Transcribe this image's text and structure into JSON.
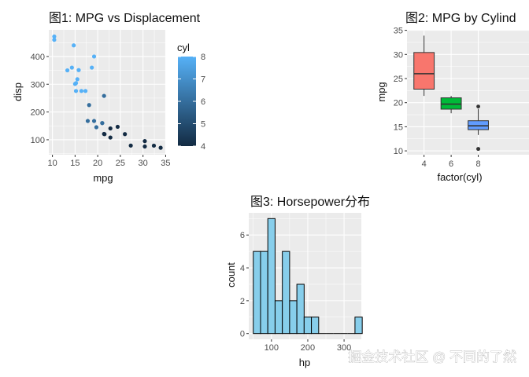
{
  "chart_data": [
    {
      "type": "scatter",
      "title": "图1: MPG vs Displacement",
      "xlabel": "mpg",
      "ylabel": "disp",
      "xlim": [
        9.2,
        35.1
      ],
      "ylim": [
        46,
        496
      ],
      "xticks": [
        10,
        15,
        20,
        25,
        30,
        35
      ],
      "yticks": [
        100,
        200,
        300,
        400
      ],
      "grid": true,
      "color_legend": {
        "title": "cyl",
        "range": [
          4,
          8
        ],
        "ticks": [
          4,
          5,
          6,
          7,
          8
        ],
        "low_color": "#132B43",
        "high_color": "#56B1F7",
        "placement": "right"
      },
      "points": [
        {
          "x": 21.0,
          "y": 160,
          "c": 6
        },
        {
          "x": 21.0,
          "y": 160,
          "c": 6
        },
        {
          "x": 22.8,
          "y": 108,
          "c": 4
        },
        {
          "x": 21.4,
          "y": 258,
          "c": 6
        },
        {
          "x": 18.7,
          "y": 360,
          "c": 8
        },
        {
          "x": 18.1,
          "y": 225,
          "c": 6
        },
        {
          "x": 14.3,
          "y": 360,
          "c": 8
        },
        {
          "x": 24.4,
          "y": 146.7,
          "c": 4
        },
        {
          "x": 22.8,
          "y": 140.8,
          "c": 4
        },
        {
          "x": 19.2,
          "y": 167.6,
          "c": 6
        },
        {
          "x": 17.8,
          "y": 167.6,
          "c": 6
        },
        {
          "x": 16.4,
          "y": 275.8,
          "c": 8
        },
        {
          "x": 17.3,
          "y": 275.8,
          "c": 8
        },
        {
          "x": 15.2,
          "y": 275.8,
          "c": 8
        },
        {
          "x": 10.4,
          "y": 472,
          "c": 8
        },
        {
          "x": 10.4,
          "y": 460,
          "c": 8
        },
        {
          "x": 14.7,
          "y": 440,
          "c": 8
        },
        {
          "x": 32.4,
          "y": 78.7,
          "c": 4
        },
        {
          "x": 30.4,
          "y": 75.7,
          "c": 4
        },
        {
          "x": 33.9,
          "y": 71.1,
          "c": 4
        },
        {
          "x": 21.5,
          "y": 120.1,
          "c": 4
        },
        {
          "x": 15.5,
          "y": 318,
          "c": 8
        },
        {
          "x": 15.2,
          "y": 304,
          "c": 8
        },
        {
          "x": 13.3,
          "y": 350,
          "c": 8
        },
        {
          "x": 19.2,
          "y": 400,
          "c": 8
        },
        {
          "x": 27.3,
          "y": 79,
          "c": 4
        },
        {
          "x": 26.0,
          "y": 120.3,
          "c": 4
        },
        {
          "x": 30.4,
          "y": 95.1,
          "c": 4
        },
        {
          "x": 15.8,
          "y": 351,
          "c": 8
        },
        {
          "x": 19.7,
          "y": 145,
          "c": 6
        },
        {
          "x": 15.0,
          "y": 301,
          "c": 8
        },
        {
          "x": 21.4,
          "y": 121,
          "c": 4
        }
      ]
    },
    {
      "type": "box",
      "title": "图2: MPG by Cylind",
      "xlabel": "factor(cyl)",
      "ylabel": "mpg",
      "ylim": [
        9.2,
        35.1
      ],
      "yticks": [
        10,
        15,
        20,
        25,
        30,
        35
      ],
      "grid": true,
      "boxes": [
        {
          "category": "4",
          "min": 21.4,
          "q1": 22.8,
          "median": 26.0,
          "q3": 30.4,
          "max": 33.9,
          "outliers": [],
          "color": "#F8766D"
        },
        {
          "category": "6",
          "min": 17.8,
          "q1": 18.65,
          "median": 19.7,
          "q3": 21.0,
          "max": 21.4,
          "outliers": [],
          "color": "#00BA38"
        },
        {
          "category": "8",
          "min": 13.3,
          "q1": 14.4,
          "median": 15.2,
          "q3": 16.25,
          "max": 18.7,
          "outliers": [
            10.4,
            10.4,
            19.2
          ],
          "color": "#619CFF"
        }
      ]
    },
    {
      "type": "histogram",
      "title": "图3: Horsepower分布",
      "xlabel": "hp",
      "ylabel": "count",
      "xlim": [
        37.5,
        347.5
      ],
      "ylim": [
        -0.35,
        7.35
      ],
      "xticks": [
        100,
        200,
        300
      ],
      "yticks": [
        0,
        2,
        4,
        6
      ],
      "grid": true,
      "fill": "#87CEEB",
      "outline": "#000000",
      "bins": [
        {
          "start": 50,
          "end": 70,
          "count": 5
        },
        {
          "start": 70,
          "end": 90,
          "count": 5
        },
        {
          "start": 90,
          "end": 110,
          "count": 7
        },
        {
          "start": 110,
          "end": 130,
          "count": 2
        },
        {
          "start": 130,
          "end": 150,
          "count": 5
        },
        {
          "start": 150,
          "end": 170,
          "count": 2
        },
        {
          "start": 170,
          "end": 190,
          "count": 3
        },
        {
          "start": 190,
          "end": 210,
          "count": 1
        },
        {
          "start": 210,
          "end": 230,
          "count": 1
        },
        {
          "start": 230,
          "end": 250,
          "count": 0
        },
        {
          "start": 250,
          "end": 270,
          "count": 0
        },
        {
          "start": 270,
          "end": 290,
          "count": 0
        },
        {
          "start": 290,
          "end": 310,
          "count": 0
        },
        {
          "start": 310,
          "end": 330,
          "count": 0
        },
        {
          "start": 330,
          "end": 350,
          "count": 1
        }
      ]
    }
  ],
  "watermark": "掘金技术社区 @ 不同的了然",
  "colors": {
    "panel": "#EBEBEB",
    "grid": "#FFFFFF",
    "tick_text": "#4D4D4D",
    "tick_mark": "#333333"
  }
}
